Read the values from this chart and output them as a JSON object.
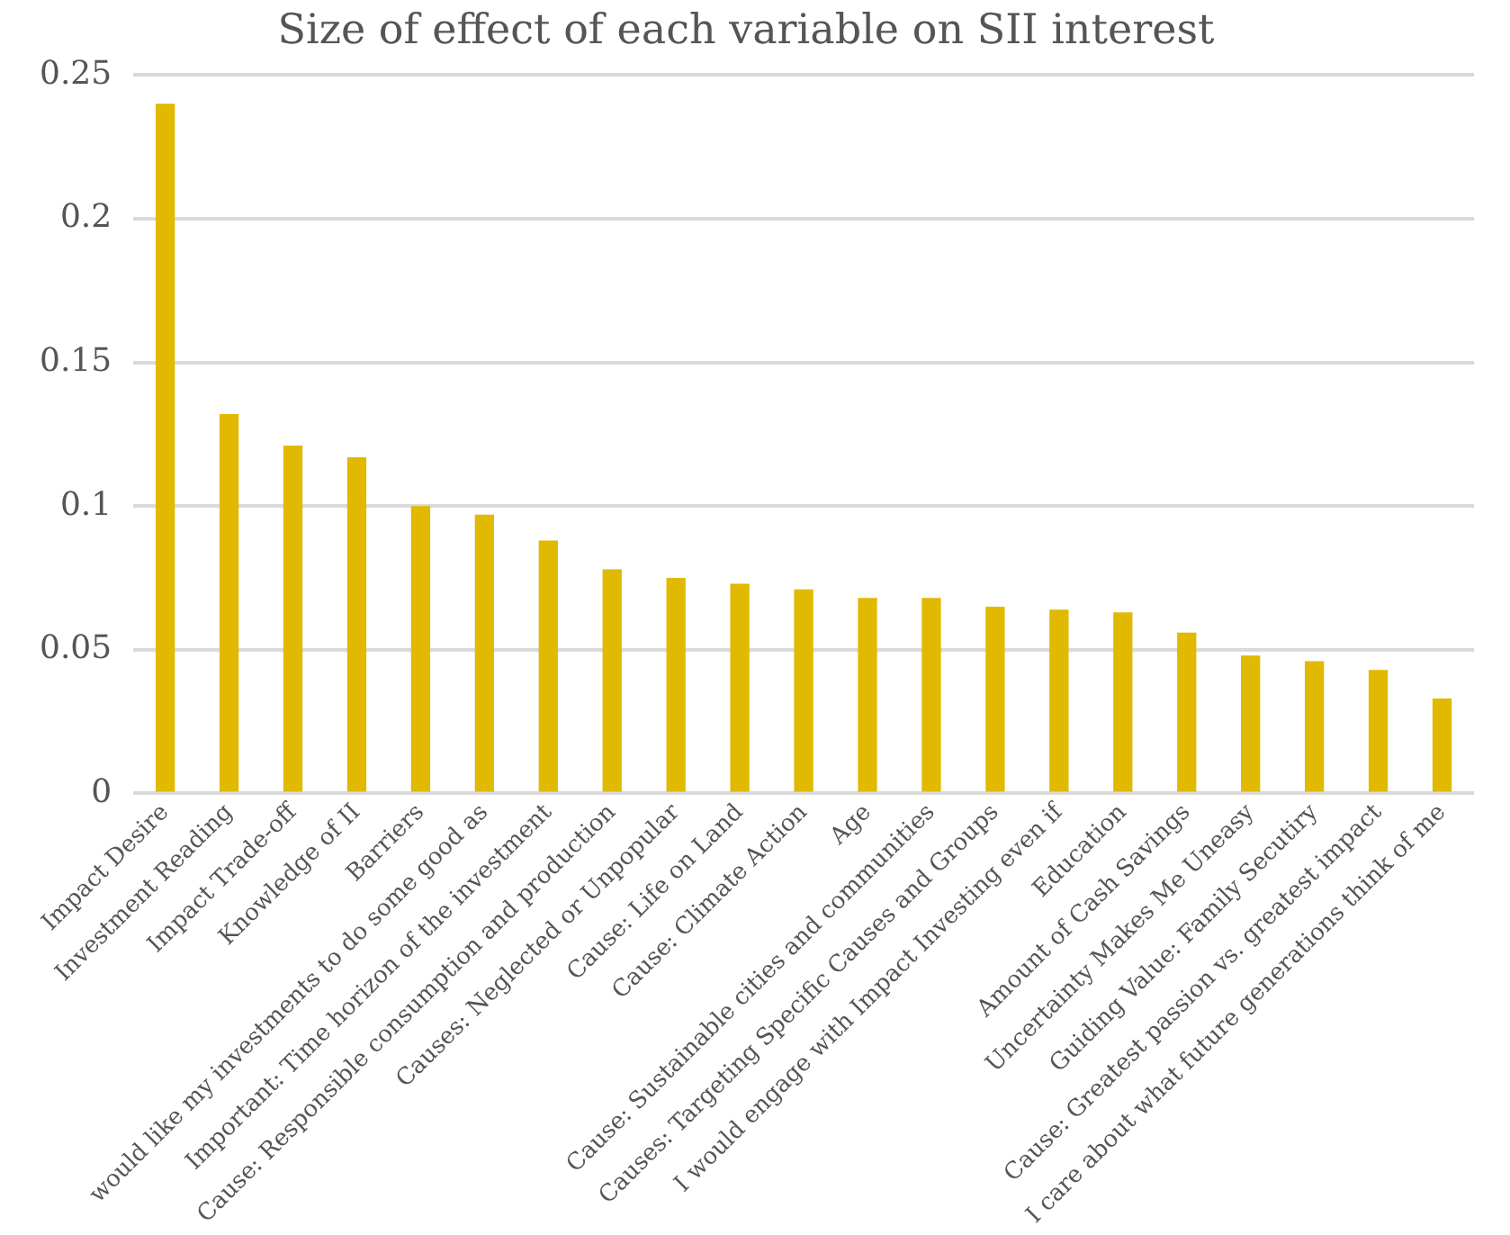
{
  "chart_data": {
    "type": "bar",
    "title": "Size of effect of each variable on SII interest",
    "categories": [
      "Impact Desire",
      "Investment Reading",
      "Impact Trade-off",
      "Knowledge of II",
      "Barriers",
      "would like my investments to do some good as",
      "Important: Time horizon of the investment",
      "Cause: Responsible consumption and production",
      "Causes: Neglected or Unpopular",
      "Cause: Life on Land",
      "Cause: Climate Action",
      "Age",
      "Cause: Sustainable cities and communities",
      "Causes: Targeting Specific Causes and Groups",
      "I would engage with Impact Investing even if",
      "Education",
      "Amount of Cash Savings",
      "Uncertainty Makes Me Uneasy",
      "Guiding Value: Family Secutiry",
      "Cause: Greatest passion vs. greatest impact",
      "I care about what future generations think of me"
    ],
    "values": [
      0.24,
      0.132,
      0.121,
      0.117,
      0.1,
      0.097,
      0.088,
      0.078,
      0.075,
      0.073,
      0.071,
      0.068,
      0.068,
      0.065,
      0.064,
      0.063,
      0.056,
      0.048,
      0.046,
      0.043,
      0.033
    ],
    "color": "#e0b900",
    "ylim": [
      0,
      0.25
    ],
    "yticks": [
      0,
      0.05,
      0.1,
      0.15,
      0.2,
      0.25
    ],
    "grid": "y",
    "legend": false
  }
}
